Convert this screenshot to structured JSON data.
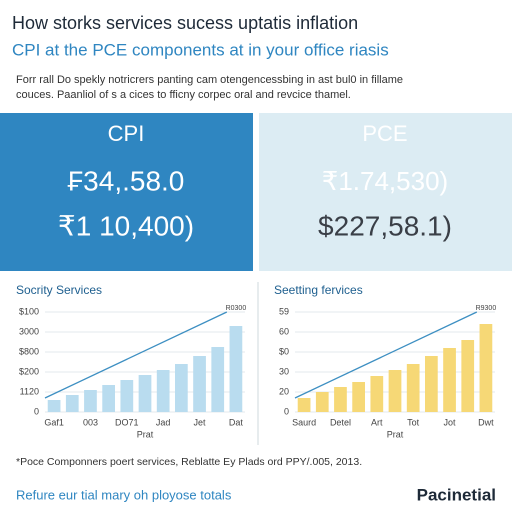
{
  "header": {
    "title": "How storks services sucess uptatis inflation",
    "subtitle": "CPI at the PCE components at in your office riasis",
    "intro": [
      "Forr rall Do spekly notricrers panting cam otengencessbing in ast bul0 in fillame",
      "couces. Paanliol of s a cices to fficny corpec oral and revcice thamel."
    ]
  },
  "panels": [
    {
      "label": "CPI",
      "lines": [
        "₣34,.58.0",
        "₹1 10,400)"
      ]
    },
    {
      "label": "PCE",
      "lines": [
        "₹1.74,530)",
        "$227,58.1)"
      ]
    }
  ],
  "chart_data": [
    {
      "type": "bar",
      "title": "Socrity Services",
      "x_label": "Prat",
      "annotation": "R0300",
      "color": "#b9dcef",
      "line_color": "#3d8fc2",
      "categories": [
        "Gaf1",
        null,
        "003",
        null,
        "DO71",
        null,
        "Jad",
        null,
        "Jet",
        null,
        "Dat"
      ],
      "values": [
        12,
        17,
        22,
        27,
        32,
        37,
        42,
        48,
        56,
        65,
        86
      ],
      "ylim": [
        0,
        100
      ],
      "yticks": [
        0,
        {
          "value": 20,
          "label": "1120"
        },
        {
          "value": 40,
          "label": "$200"
        },
        {
          "value": 60,
          "label": "$800"
        },
        {
          "value": 80,
          "label": "3000"
        },
        {
          "value": 100,
          "label": "$100"
        }
      ],
      "grid": true
    },
    {
      "type": "bar",
      "title": "Seetting fervices",
      "x_label": "Prat",
      "annotation": "R9300",
      "color": "#f6d876",
      "line_color": "#3d8fc2",
      "categories": [
        "Saurd",
        null,
        "Detel",
        null,
        "Art",
        null,
        "Tot",
        null,
        "Jot",
        null,
        "Dwt"
      ],
      "values": [
        14,
        20,
        25,
        30,
        36,
        42,
        48,
        56,
        64,
        72,
        88
      ],
      "ylim": [
        0,
        100
      ],
      "yticks": [
        0,
        {
          "value": 20,
          "label": "20"
        },
        {
          "value": 40,
          "label": "30"
        },
        {
          "value": 60,
          "label": "$0"
        },
        {
          "value": 80,
          "label": "60"
        },
        {
          "value": 100,
          "label": "59"
        }
      ],
      "grid": true
    }
  ],
  "footnote": "*Poce Componners poert services, Reblatte Ey Plads ord PPY/.005, 2013.",
  "footer": {
    "text": "Refure eur tial mary oh ployose totals",
    "logo": "Pacinetial"
  }
}
